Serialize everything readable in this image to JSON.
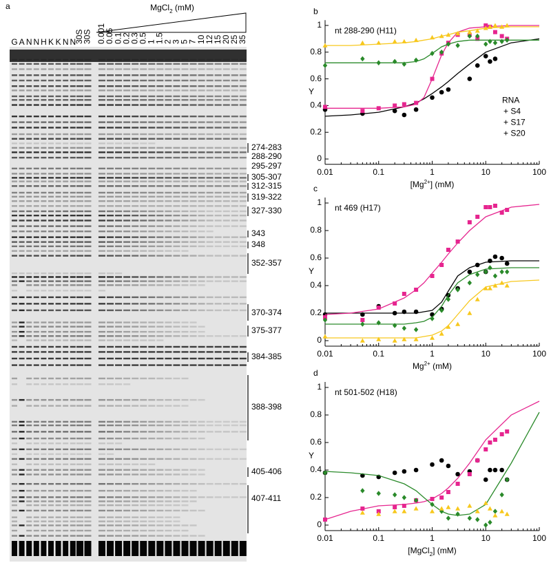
{
  "gel": {
    "panel": "a",
    "lanes": [
      "G",
      "A",
      "N",
      "N",
      "H",
      "K",
      "K",
      "N",
      "N",
      "30S",
      "30S"
    ],
    "title": [
      {
        "text": "MgCl"
      },
      {
        "text": "2",
        "sub": true
      },
      {
        "text": " (mM)"
      }
    ],
    "concentrations": [
      "0.001",
      "0.05",
      "0.1",
      "0.2",
      "0.3",
      "0.5",
      "1",
      "1.5",
      "2",
      "3",
      "5",
      "7",
      "10",
      "12",
      "15",
      "20",
      "25",
      "35"
    ],
    "bands": [
      "274-283",
      "288-290",
      "295-297",
      "305-307",
      "312-315",
      "319-322",
      "327-330",
      "343",
      "348",
      "352-357",
      "370-374",
      "375-377",
      "384-385",
      "388-398",
      "405-406",
      "407-411"
    ]
  },
  "chart_data": [
    {
      "type": "scatter",
      "panel": "b",
      "annotation": "nt 288-290 (H11)",
      "ylabel": "Y",
      "xlabel": [
        {
          "text": "[Mg"
        },
        {
          "text": "2+",
          "sup": true
        },
        {
          "text": "] (mM)"
        }
      ],
      "xscale": "log",
      "xlim": [
        0.01,
        100
      ],
      "xticks": [
        0.01,
        0.1,
        1,
        10,
        100
      ],
      "ylim": [
        -0.04,
        1.04
      ],
      "yticks": [
        0,
        0.2,
        0.4,
        0.6,
        0.8,
        1
      ],
      "legend": "right",
      "x": [
        0.01,
        0.05,
        0.1,
        0.2,
        0.3,
        0.5,
        1,
        1.5,
        2,
        3,
        5,
        7,
        10,
        12,
        15,
        20,
        25
      ],
      "fit_x": [
        0.01,
        0.03,
        0.1,
        0.3,
        0.5,
        0.7,
        1,
        1.5,
        2,
        3,
        5,
        10,
        30,
        100
      ],
      "series": [
        {
          "name": "RNA",
          "color": "#000000",
          "marker": "circle",
          "values": [
            0.37,
            0.34,
            null,
            0.36,
            0.33,
            0.37,
            0.46,
            0.5,
            0.52,
            null,
            0.6,
            0.7,
            0.77,
            0.73,
            0.75,
            null,
            null
          ],
          "fit": [
            0.32,
            0.33,
            0.35,
            0.39,
            0.42,
            0.45,
            0.49,
            0.54,
            0.58,
            0.64,
            0.71,
            0.8,
            0.87,
            0.9
          ]
        },
        {
          "name": "+ S4",
          "color": "#e6258f",
          "marker": "square",
          "values": [
            0.39,
            0.36,
            0.38,
            0.4,
            0.41,
            0.42,
            0.6,
            0.79,
            0.87,
            0.93,
            0.93,
            0.9,
            1.0,
            0.99,
            0.95,
            0.92,
            0.9
          ],
          "fit": [
            0.38,
            0.38,
            0.38,
            0.39,
            0.41,
            0.46,
            0.6,
            0.78,
            0.87,
            0.95,
            0.98,
            0.99,
            1.0,
            1.0
          ]
        },
        {
          "name": "+ S17",
          "color": "#2a8a2a",
          "marker": "diamond",
          "values": [
            0.7,
            0.75,
            0.72,
            0.73,
            0.71,
            0.74,
            0.79,
            0.8,
            0.86,
            0.85,
            0.92,
            0.92,
            0.86,
            0.88,
            0.87,
            0.88,
            0.89
          ],
          "fit": [
            0.72,
            0.72,
            0.72,
            0.72,
            0.73,
            0.75,
            0.79,
            0.84,
            0.86,
            0.88,
            0.89,
            0.89,
            0.89,
            0.89
          ]
        },
        {
          "name": "+ S20",
          "color": "#f7c81e",
          "marker": "triangle",
          "values": [
            0.85,
            0.87,
            0.87,
            0.88,
            0.88,
            0.89,
            0.91,
            0.92,
            0.93,
            0.94,
            0.95,
            0.96,
            0.98,
            0.99,
            1.0,
            0.99,
            1.0
          ],
          "fit": [
            0.85,
            0.85,
            0.86,
            0.87,
            0.88,
            0.89,
            0.9,
            0.92,
            0.93,
            0.95,
            0.96,
            0.98,
            0.99,
            0.99
          ]
        }
      ]
    },
    {
      "type": "scatter",
      "panel": "c",
      "annotation": "nt 469 (H17)",
      "ylabel": "Y",
      "xlabel": [
        {
          "text": "Mg"
        },
        {
          "text": "2+",
          "sup": true
        },
        {
          "text": " (mM)"
        }
      ],
      "xscale": "log",
      "xlim": [
        0.01,
        100
      ],
      "xticks": [
        0.01,
        0.1,
        1,
        10,
        100
      ],
      "ylim": [
        -0.04,
        1.04
      ],
      "yticks": [
        0,
        0.2,
        0.4,
        0.6,
        0.8,
        1
      ],
      "x": [
        0.01,
        0.05,
        0.1,
        0.2,
        0.3,
        0.5,
        1,
        1.5,
        2,
        3,
        5,
        7,
        10,
        12,
        15,
        20,
        25
      ],
      "fit_x": [
        0.01,
        0.03,
        0.1,
        0.3,
        0.5,
        0.7,
        1,
        1.5,
        2,
        3,
        5,
        10,
        30,
        100
      ],
      "series": [
        {
          "color": "#000000",
          "marker": "circle",
          "values": [
            0.19,
            0.19,
            0.25,
            0.2,
            0.21,
            0.21,
            0.19,
            0.23,
            0.33,
            0.38,
            0.5,
            0.55,
            0.5,
            0.58,
            0.61,
            0.6,
            0.56
          ],
          "fit": [
            0.2,
            0.2,
            0.2,
            0.2,
            0.2,
            0.21,
            0.22,
            0.28,
            0.36,
            0.47,
            0.53,
            0.57,
            0.58,
            0.58
          ]
        },
        {
          "color": "#e6258f",
          "marker": "square",
          "values": [
            0.17,
            0.15,
            0.24,
            0.27,
            0.34,
            0.37,
            0.47,
            0.55,
            0.66,
            0.72,
            0.86,
            0.9,
            0.97,
            0.97,
            0.98,
            0.93,
            0.95
          ],
          "fit": [
            0.19,
            0.2,
            0.23,
            0.31,
            0.37,
            0.42,
            0.49,
            0.57,
            0.63,
            0.71,
            0.8,
            0.9,
            0.97,
            0.99
          ]
        },
        {
          "color": "#2a8a2a",
          "marker": "diamond",
          "values": [
            0.15,
            0.12,
            0.13,
            0.11,
            0.09,
            0.08,
            0.16,
            0.22,
            0.3,
            0.37,
            0.42,
            0.48,
            0.5,
            0.53,
            0.47,
            0.5,
            0.5
          ],
          "fit": [
            0.12,
            0.12,
            0.12,
            0.12,
            0.13,
            0.14,
            0.17,
            0.25,
            0.33,
            0.42,
            0.48,
            0.52,
            0.53,
            0.53
          ]
        },
        {
          "color": "#f7c81e",
          "marker": "triangle",
          "values": [
            0.03,
            0.0,
            0.01,
            0.0,
            0.01,
            0.01,
            0.02,
            0.05,
            0.1,
            0.12,
            0.2,
            0.3,
            0.38,
            0.38,
            0.4,
            0.42,
            0.4
          ],
          "fit": [
            0.02,
            0.02,
            0.02,
            0.02,
            0.02,
            0.03,
            0.04,
            0.07,
            0.11,
            0.19,
            0.29,
            0.39,
            0.43,
            0.44
          ]
        }
      ]
    },
    {
      "type": "scatter",
      "panel": "d",
      "annotation": "nt 501-502 (H18)",
      "ylabel": "Y",
      "xlabel": [
        {
          "text": "[MgCl"
        },
        {
          "text": "2",
          "sub": true
        },
        {
          "text": "] (mM)"
        }
      ],
      "xscale": "log",
      "xlim": [
        0.01,
        100
      ],
      "xticks": [
        0.01,
        0.1,
        1,
        10,
        100
      ],
      "ylim": [
        -0.04,
        1.04
      ],
      "yticks": [
        0,
        0.2,
        0.4,
        0.6,
        0.8,
        1
      ],
      "x": [
        0.01,
        0.05,
        0.1,
        0.2,
        0.3,
        0.5,
        1,
        1.5,
        2,
        3,
        5,
        7,
        10,
        12,
        15,
        20,
        25
      ],
      "fit_x": [
        0.01,
        0.03,
        0.1,
        0.3,
        0.5,
        0.7,
        1,
        1.5,
        2,
        3,
        5,
        10,
        30,
        100
      ],
      "series": [
        {
          "color": "#000000",
          "marker": "circle",
          "values": [
            0.38,
            0.36,
            0.35,
            0.38,
            0.39,
            0.4,
            0.44,
            0.47,
            0.43,
            0.37,
            0.39,
            0.47,
            0.33,
            0.4,
            0.4,
            0.4,
            0.33
          ]
        },
        {
          "color": "#e6258f",
          "marker": "square",
          "values": [
            0.04,
            0.12,
            0.1,
            0.13,
            0.14,
            0.18,
            0.19,
            0.2,
            0.24,
            0.3,
            0.37,
            0.47,
            0.55,
            0.6,
            0.62,
            0.66,
            0.68
          ],
          "fit": [
            0.04,
            0.1,
            0.14,
            0.15,
            0.16,
            0.17,
            0.19,
            0.23,
            0.27,
            0.34,
            0.45,
            0.62,
            0.8,
            0.9
          ]
        },
        {
          "color": "#2a8a2a",
          "marker": "diamond",
          "values": [
            0.38,
            0.25,
            0.23,
            0.22,
            0.2,
            0.18,
            0.15,
            0.1,
            0.05,
            0.08,
            0.05,
            0.04,
            0.0,
            0.02,
            0.1,
            0.22,
            0.33
          ],
          "fit": [
            0.39,
            0.38,
            0.36,
            0.3,
            0.25,
            0.2,
            0.15,
            0.1,
            0.08,
            0.07,
            0.08,
            0.15,
            0.45,
            0.82
          ]
        },
        {
          "color": "#f7c81e",
          "marker": "triangle",
          "values": [
            null,
            0.09,
            0.08,
            0.1,
            0.1,
            0.12,
            0.1,
            0.12,
            0.13,
            0.12,
            0.14,
            0.1,
            0.16,
            0.12,
            0.07,
            0.1,
            0.08
          ]
        }
      ]
    }
  ]
}
